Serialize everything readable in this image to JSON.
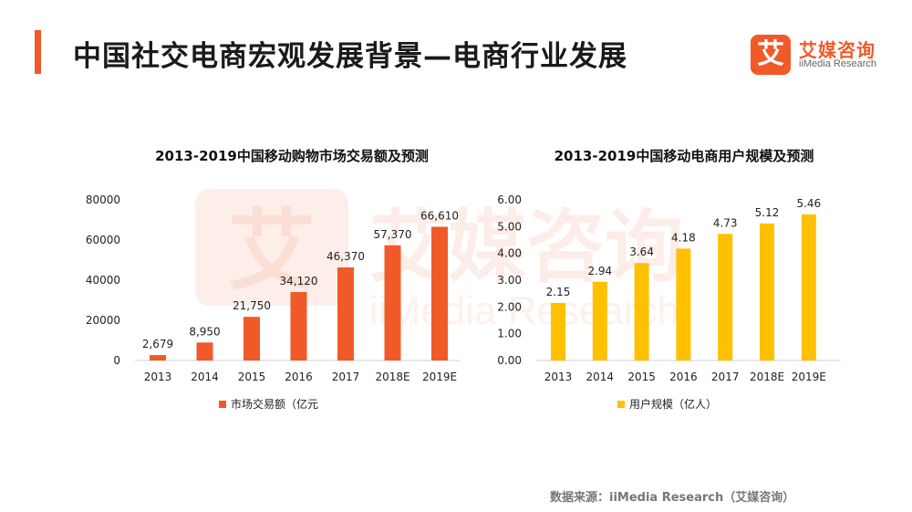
{
  "page": {
    "title": "中国社交电商宏观发展背景—电商行业发展",
    "source": "数据来源：iiMedia Research（艾媒咨询）"
  },
  "logo": {
    "mark": "艾",
    "name_cn": "艾媒咨询",
    "name_en": "iiMedia Research"
  },
  "colors": {
    "accent": "#f05a28",
    "series_left": "#f05a28",
    "series_right": "#ffc000"
  },
  "chart_data": [
    {
      "type": "bar",
      "title": "2013-2019中国移动购物市场交易额及预测",
      "categories": [
        "2013",
        "2014",
        "2015",
        "2016",
        "2017",
        "2018E",
        "2019E"
      ],
      "series": [
        {
          "name": "市场交易额（亿元",
          "values": [
            2679,
            8950,
            21750,
            34120,
            46370,
            57370,
            66610
          ]
        }
      ],
      "value_labels": [
        "2,679",
        "8,950",
        "21,750",
        "34,120",
        "46,370",
        "57,370",
        "66,610"
      ],
      "yticks": [
        "0",
        "20000",
        "40000",
        "60000",
        "80000"
      ],
      "ylim": [
        0,
        80000
      ],
      "xlabel": "",
      "ylabel": "",
      "grid": false,
      "legend": "bottom"
    },
    {
      "type": "bar",
      "title": "2013-2019中国移动电商用户规模及预测",
      "categories": [
        "2013",
        "2014",
        "2015",
        "2016",
        "2017",
        "2018E",
        "2019E"
      ],
      "series": [
        {
          "name": "用户规模（亿人）",
          "values": [
            2.15,
            2.94,
            3.64,
            4.18,
            4.73,
            5.12,
            5.46
          ]
        }
      ],
      "value_labels": [
        "2.15",
        "2.94",
        "3.64",
        "4.18",
        "4.73",
        "5.12",
        "5.46"
      ],
      "yticks": [
        "0.00",
        "1.00",
        "2.00",
        "3.00",
        "4.00",
        "5.00",
        "6.00"
      ],
      "ylim": [
        0,
        6
      ],
      "xlabel": "",
      "ylabel": "",
      "grid": false,
      "legend": "bottom"
    }
  ]
}
